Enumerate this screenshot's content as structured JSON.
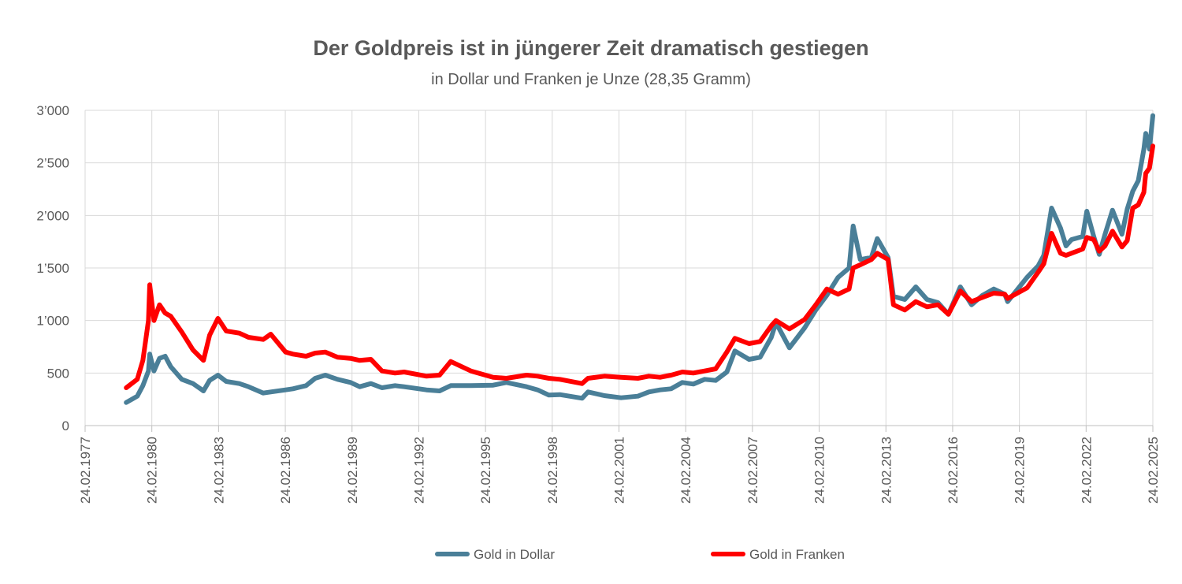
{
  "chart_data": {
    "type": "line",
    "title": "Der Goldpreis ist in jüngerer Zeit dramatisch gestiegen",
    "subtitle": "in Dollar und Franken je Unze (28,35 Gramm)",
    "xlabel": "",
    "ylabel": "",
    "x_ticks": [
      "24.02.1977",
      "24.02.1980",
      "24.02.1983",
      "24.02.1986",
      "24.02.1989",
      "24.02.1992",
      "24.02.1995",
      "24.02.1998",
      "24.02.2001",
      "24.02.2004",
      "24.02.2007",
      "24.02.2010",
      "24.02.2013",
      "24.02.2016",
      "24.02.2019",
      "24.02.2022",
      "24.02.2025"
    ],
    "y_ticks": [
      "0",
      "500",
      "1’000",
      "1’500",
      "2’000",
      "2’500",
      "3’000"
    ],
    "xlim": [
      "1977-02-24",
      "2025-02-24"
    ],
    "ylim": [
      0,
      3000
    ],
    "grid": true,
    "legend_position": "bottom",
    "series": [
      {
        "name": "Gold in Dollar",
        "color": "#4a7f98",
        "x": [
          "1978-12-31",
          "1979-06-30",
          "1979-09-30",
          "1979-12-31",
          "1980-01-21",
          "1980-03-31",
          "1980-06-30",
          "1980-09-30",
          "1980-12-31",
          "1981-06-30",
          "1981-12-31",
          "1982-06-21",
          "1982-09-30",
          "1983-02-15",
          "1983-06-30",
          "1984-01-31",
          "1984-06-30",
          "1985-02-28",
          "1985-06-30",
          "1986-02-28",
          "1986-06-30",
          "1987-01-31",
          "1987-06-30",
          "1987-12-14",
          "1988-06-30",
          "1989-01-31",
          "1989-06-30",
          "1989-12-31",
          "1990-06-30",
          "1991-01-31",
          "1991-06-30",
          "1992-06-30",
          "1993-01-31",
          "1993-08-02",
          "1994-06-30",
          "1995-06-30",
          "1996-02-02",
          "1996-12-31",
          "1997-06-30",
          "1997-12-31",
          "1998-06-30",
          "1999-06-30",
          "1999-10-05",
          "2000-06-30",
          "2001-03-31",
          "2001-12-31",
          "2002-06-30",
          "2002-12-31",
          "2003-06-30",
          "2003-12-31",
          "2004-06-30",
          "2004-12-31",
          "2005-06-30",
          "2005-12-31",
          "2006-05-12",
          "2006-12-31",
          "2007-06-30",
          "2007-12-31",
          "2008-03-17",
          "2008-10-24",
          "2009-06-30",
          "2009-12-31",
          "2010-06-30",
          "2010-12-31",
          "2011-06-30",
          "2011-09-05",
          "2011-12-31",
          "2012-06-30",
          "2012-10-05",
          "2013-03-31",
          "2013-06-28",
          "2013-12-31",
          "2014-06-30",
          "2014-12-31",
          "2015-06-30",
          "2015-12-17",
          "2016-06-30",
          "2016-12-31",
          "2017-06-30",
          "2017-12-31",
          "2018-06-30",
          "2018-08-16",
          "2019-06-30",
          "2019-12-31",
          "2020-03-31",
          "2020-08-06",
          "2020-12-31",
          "2021-03-31",
          "2021-06-30",
          "2021-12-31",
          "2022-03-08",
          "2022-06-30",
          "2022-09-28",
          "2022-12-31",
          "2023-05-04",
          "2023-10-06",
          "2023-12-31",
          "2024-03-31",
          "2024-06-30",
          "2024-09-30",
          "2024-10-30",
          "2024-12-31",
          "2025-02-24"
        ],
        "values": [
          220,
          280,
          380,
          520,
          680,
          520,
          640,
          660,
          560,
          440,
          400,
          330,
          430,
          480,
          420,
          400,
          370,
          310,
          320,
          340,
          350,
          380,
          450,
          480,
          440,
          410,
          370,
          400,
          360,
          380,
          370,
          340,
          330,
          380,
          380,
          385,
          410,
          370,
          340,
          290,
          295,
          260,
          320,
          285,
          265,
          280,
          320,
          340,
          350,
          410,
          395,
          440,
          430,
          510,
          710,
          630,
          650,
          840,
          980,
          740,
          930,
          1100,
          1240,
          1410,
          1500,
          1900,
          1580,
          1600,
          1780,
          1600,
          1230,
          1200,
          1320,
          1200,
          1170,
          1060,
          1320,
          1150,
          1240,
          1300,
          1250,
          1180,
          1410,
          1520,
          1620,
          2070,
          1880,
          1710,
          1770,
          1800,
          2040,
          1800,
          1630,
          1820,
          2050,
          1820,
          2060,
          2230,
          2330,
          2630,
          2780,
          2630,
          2950
        ]
      },
      {
        "name": "Gold in Franken",
        "color": "#ff0000",
        "x": [
          "1978-12-31",
          "1979-06-30",
          "1979-09-30",
          "1979-12-31",
          "1980-01-21",
          "1980-03-31",
          "1980-06-30",
          "1980-09-30",
          "1980-12-31",
          "1981-06-30",
          "1981-12-31",
          "1982-06-21",
          "1982-09-30",
          "1983-02-15",
          "1983-06-30",
          "1984-01-31",
          "1984-06-30",
          "1985-02-28",
          "1985-06-30",
          "1986-02-28",
          "1986-06-30",
          "1987-01-31",
          "1987-06-30",
          "1987-12-14",
          "1988-06-30",
          "1989-01-31",
          "1989-06-30",
          "1989-12-31",
          "1990-06-30",
          "1991-01-31",
          "1991-06-30",
          "1992-06-30",
          "1993-01-31",
          "1993-08-02",
          "1994-06-30",
          "1995-06-30",
          "1996-02-02",
          "1996-12-31",
          "1997-06-30",
          "1997-12-31",
          "1998-06-30",
          "1999-06-30",
          "1999-10-05",
          "2000-06-30",
          "2001-03-31",
          "2001-12-31",
          "2002-06-30",
          "2002-12-31",
          "2003-06-30",
          "2003-12-31",
          "2004-06-30",
          "2004-12-31",
          "2005-06-30",
          "2005-12-31",
          "2006-05-12",
          "2006-12-31",
          "2007-06-30",
          "2007-12-31",
          "2008-03-17",
          "2008-10-24",
          "2009-06-30",
          "2009-12-31",
          "2010-06-30",
          "2010-12-31",
          "2011-06-30",
          "2011-09-05",
          "2011-12-31",
          "2012-06-30",
          "2012-10-05",
          "2013-03-31",
          "2013-06-28",
          "2013-12-31",
          "2014-06-30",
          "2014-12-31",
          "2015-06-30",
          "2015-12-17",
          "2016-06-30",
          "2016-12-31",
          "2017-06-30",
          "2017-12-31",
          "2018-06-30",
          "2018-08-16",
          "2019-06-30",
          "2019-12-31",
          "2020-03-31",
          "2020-08-06",
          "2020-12-31",
          "2021-03-31",
          "2021-06-30",
          "2021-12-31",
          "2022-03-08",
          "2022-06-30",
          "2022-09-28",
          "2022-12-31",
          "2023-05-04",
          "2023-10-06",
          "2023-12-31",
          "2024-03-31",
          "2024-06-30",
          "2024-09-30",
          "2024-10-30",
          "2024-12-31",
          "2025-02-24"
        ],
        "values": [
          360,
          440,
          620,
          1000,
          1340,
          1000,
          1150,
          1070,
          1040,
          890,
          720,
          620,
          860,
          1020,
          900,
          880,
          840,
          820,
          870,
          700,
          680,
          660,
          690,
          700,
          650,
          640,
          620,
          630,
          520,
          500,
          510,
          470,
          480,
          610,
          520,
          460,
          450,
          480,
          470,
          450,
          440,
          400,
          450,
          470,
          460,
          450,
          470,
          460,
          480,
          510,
          500,
          520,
          540,
          700,
          830,
          780,
          800,
          950,
          1000,
          920,
          1010,
          1150,
          1300,
          1250,
          1300,
          1500,
          1530,
          1580,
          1640,
          1580,
          1150,
          1100,
          1180,
          1130,
          1150,
          1060,
          1280,
          1180,
          1220,
          1260,
          1250,
          1210,
          1310,
          1460,
          1540,
          1830,
          1640,
          1620,
          1640,
          1680,
          1790,
          1770,
          1660,
          1710,
          1850,
          1700,
          1760,
          2070,
          2100,
          2220,
          2400,
          2450,
          2660
        ]
      }
    ]
  }
}
